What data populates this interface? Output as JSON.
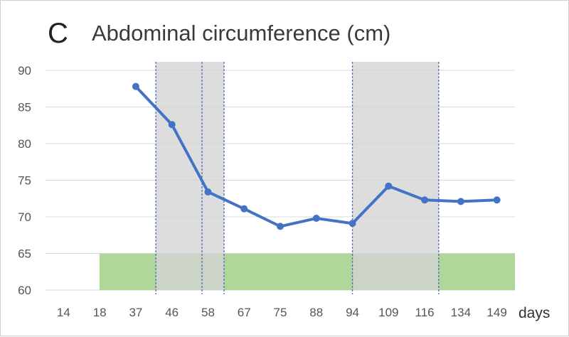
{
  "panel_letter": "C",
  "chart_data": {
    "type": "line",
    "title": "Abdominal circumference (cm)",
    "xlabel": "days",
    "ylabel": "",
    "categories": [
      "14",
      "18",
      "37",
      "46",
      "58",
      "67",
      "75",
      "88",
      "94",
      "109",
      "116",
      "134",
      "149"
    ],
    "ylim": [
      60,
      90
    ],
    "yticks": [
      60,
      65,
      70,
      75,
      80,
      85,
      90
    ],
    "grid": true,
    "series": [
      {
        "name": "",
        "color": "#4472c4",
        "values": [
          null,
          null,
          87.8,
          82.6,
          73.4,
          71.1,
          68.7,
          69.8,
          69.1,
          74.2,
          72.3,
          72.1,
          72.3
        ]
      }
    ],
    "shaded_periods": [
      {
        "from_day": 42,
        "to_day": 62,
        "color": "#d3d3d3"
      },
      {
        "from_day": 94,
        "to_day": 123,
        "color": "#d3d3d3"
      }
    ],
    "period_markers_day": [
      42,
      56,
      62,
      94,
      123
    ],
    "reference_range": {
      "from": 60,
      "to": 65,
      "color": "#a9d18e"
    }
  }
}
